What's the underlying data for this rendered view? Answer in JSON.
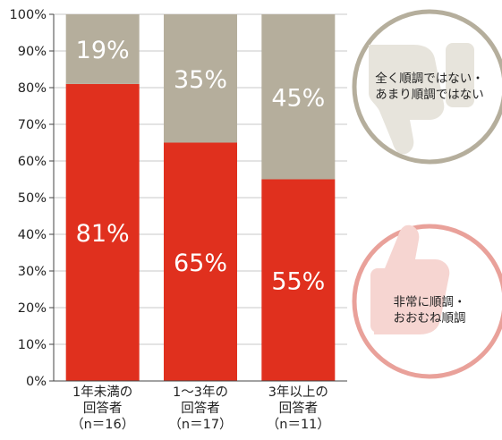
{
  "chart_data": {
    "type": "bar",
    "stacked": true,
    "orientation": "vertical",
    "y_ticks": [
      "0%",
      "10%",
      "20%",
      "30%",
      "40%",
      "50%",
      "60%",
      "70%",
      "80%",
      "90%",
      "100%"
    ],
    "ylim": [
      0,
      100
    ],
    "categories": [
      [
        "1年未満の",
        "回答者",
        "（n＝16）"
      ],
      [
        "1～3年の",
        "回答者",
        "（n＝17）"
      ],
      [
        "3年以上の",
        "回答者",
        "（n＝11）"
      ]
    ],
    "series": [
      {
        "name": "非常に順調・おおむね順調",
        "color": "#e0301e",
        "values": [
          81,
          65,
          55
        ],
        "labels": [
          "81%",
          "65%",
          "55%"
        ]
      },
      {
        "name": "全く順調ではない・あまり順調ではない",
        "color": "#b5ae9c",
        "values": [
          19,
          35,
          45
        ],
        "labels": [
          "19%",
          "35%",
          "45%"
        ]
      }
    ],
    "legend": {
      "placement": "right",
      "items": [
        {
          "lines": [
            "全く順調ではない・",
            "あまり順調ではない"
          ],
          "icon": "thumbs-down-icon",
          "color": "#b5ae9c"
        },
        {
          "lines": [
            "非常に順調・",
            "おおむね順調"
          ],
          "icon": "thumbs-up-icon",
          "color": "#e9a19a"
        }
      ]
    },
    "grid": true
  }
}
